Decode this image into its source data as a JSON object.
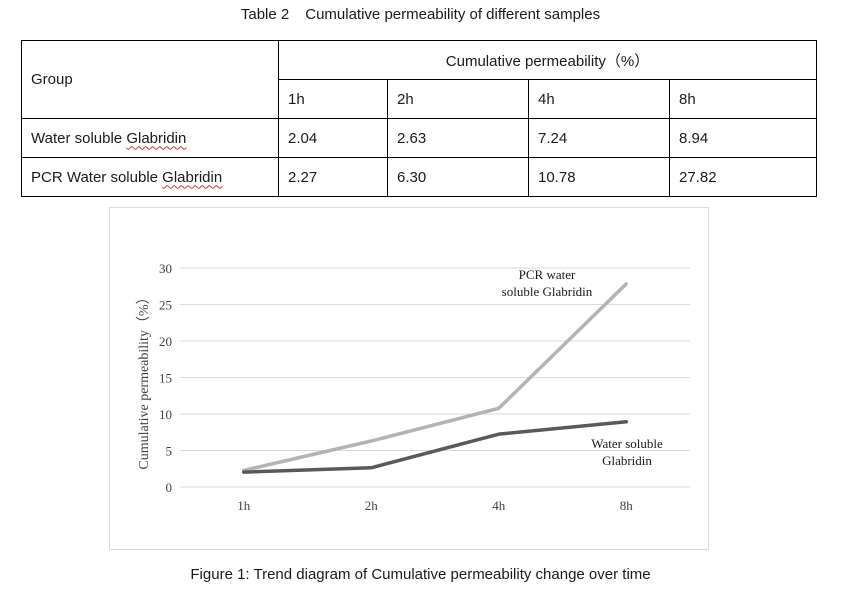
{
  "table_caption": {
    "number": "Table 2",
    "title": "Cumulative permeability of different samples"
  },
  "table": {
    "group_header": "Group",
    "perm_header": "Cumulative permeability（%）",
    "times": [
      "1h",
      "2h",
      "4h",
      "8h"
    ],
    "rows": [
      {
        "group_prefix": "Water soluble ",
        "group_word": "Glabridin",
        "values": [
          "2.04",
          "2.63",
          "7.24",
          "8.94"
        ]
      },
      {
        "group_prefix": "PCR Water soluble ",
        "group_word": "Glabridin",
        "values": [
          "2.27",
          "6.30",
          "10.78",
          "27.82"
        ]
      }
    ]
  },
  "chart_data": {
    "type": "line",
    "categories": [
      "1h",
      "2h",
      "4h",
      "8h"
    ],
    "ylabel": "Cumulative permeability（%）",
    "ylim": [
      0,
      30
    ],
    "yticks": [
      0,
      5,
      10,
      15,
      20,
      25,
      30
    ],
    "grid": true,
    "series": [
      {
        "name": "PCR water soluble Glabridin",
        "label_lines": [
          "PCR water",
          "soluble Glabridin"
        ],
        "values": [
          2.27,
          6.3,
          10.78,
          27.82
        ],
        "color": "#b3b3b3"
      },
      {
        "name": "Water soluble Glabridin",
        "label_lines": [
          "Water soluble",
          "Glabridin"
        ],
        "values": [
          2.04,
          2.63,
          7.24,
          8.94
        ],
        "color": "#595959"
      }
    ]
  },
  "figure_caption": "Figure 1: Trend diagram of Cumulative permeability change over time"
}
